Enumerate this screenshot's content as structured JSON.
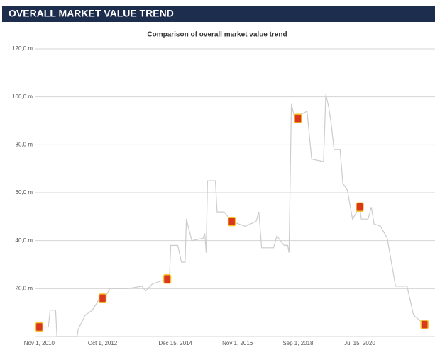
{
  "chart_data": {
    "type": "line",
    "header": "OVERALL MARKET VALUE TREND",
    "title": "Comparison of overall market value trend",
    "xlim": [
      "2010-09-20",
      "2022-07-15"
    ],
    "xticks": [
      {
        "value": "2010-11-01",
        "label": "Nov 1, 2010"
      },
      {
        "value": "2012-10-01",
        "label": "Oct 1, 2012"
      },
      {
        "value": "2014-12-15",
        "label": "Dec 15, 2014"
      },
      {
        "value": "2016-11-01",
        "label": "Nov 1, 2016"
      },
      {
        "value": "2018-09-01",
        "label": "Sep 1, 2018"
      },
      {
        "value": "2020-07-15",
        "label": "Jul 15, 2020"
      }
    ],
    "ylim": [
      0,
      120
    ],
    "yticks": [
      {
        "value": 20,
        "label": "20,0 m"
      },
      {
        "value": 40,
        "label": "40,0 m"
      },
      {
        "value": 60,
        "label": "60,0 m"
      },
      {
        "value": 80,
        "label": "80,0 m"
      },
      {
        "value": 100,
        "label": "100,0 m"
      },
      {
        "value": 120,
        "label": "120,0 m"
      }
    ],
    "grid": true,
    "series": [
      {
        "color": "#cccccc",
        "x": [
          "2010-11-01",
          "2011-02-10",
          "2011-03-01",
          "2011-05-01",
          "2011-05-15",
          "2011-12-25",
          "2012-01-05",
          "2012-03-25",
          "2012-06-10",
          "2012-08-30",
          "2012-10-01",
          "2012-10-25",
          "2012-12-20",
          "2013-07-05",
          "2013-12-10",
          "2014-01-20",
          "2014-04-05",
          "2014-09-15",
          "2014-10-10",
          "2014-10-25",
          "2015-01-10",
          "2015-02-20",
          "2015-04-01",
          "2015-04-15",
          "2015-06-15",
          "2015-10-15",
          "2015-11-05",
          "2015-11-20",
          "2015-12-05",
          "2016-03-01",
          "2016-03-20",
          "2016-06-05",
          "2016-08-30",
          "2017-01-25",
          "2017-05-25",
          "2017-06-25",
          "2017-07-25",
          "2017-12-05",
          "2018-01-10",
          "2018-04-01",
          "2018-05-10",
          "2018-05-25",
          "2018-06-20",
          "2018-07-20",
          "2018-10-20",
          "2018-12-10",
          "2019-01-30",
          "2019-06-10",
          "2019-07-05",
          "2019-08-05",
          "2019-08-30",
          "2019-10-05",
          "2019-12-10",
          "2020-01-10",
          "2020-03-01",
          "2020-04-25",
          "2020-07-15",
          "2020-08-01",
          "2020-10-15",
          "2020-11-20",
          "2020-12-20",
          "2021-03-01",
          "2021-05-15",
          "2021-08-15",
          "2021-12-20",
          "2022-03-01",
          "2022-06-01",
          "2022-07-01"
        ],
        "values": [
          4,
          4,
          11,
          11,
          0,
          0,
          3,
          9,
          11,
          16,
          16,
          16,
          20,
          20,
          21,
          19,
          22,
          24,
          24,
          38,
          38,
          31,
          31,
          49,
          40,
          41,
          43,
          35,
          65,
          65,
          52,
          52,
          48,
          46,
          48,
          52,
          37,
          37,
          42,
          38,
          38,
          35,
          97,
          92,
          93,
          94,
          74,
          73,
          101,
          96,
          90,
          78,
          78,
          64,
          61,
          49,
          54,
          49,
          49,
          54,
          47,
          46,
          41,
          21,
          21,
          9,
          6,
          5
        ]
      }
    ],
    "markers": {
      "color": "#d9381e",
      "x": [
        "2010-11-01",
        "2012-10-01",
        "2014-09-15",
        "2016-08-30",
        "2018-09-01",
        "2020-07-15",
        "2022-07-01"
      ],
      "values": [
        4,
        16,
        24,
        48,
        91,
        54,
        5
      ]
    }
  }
}
